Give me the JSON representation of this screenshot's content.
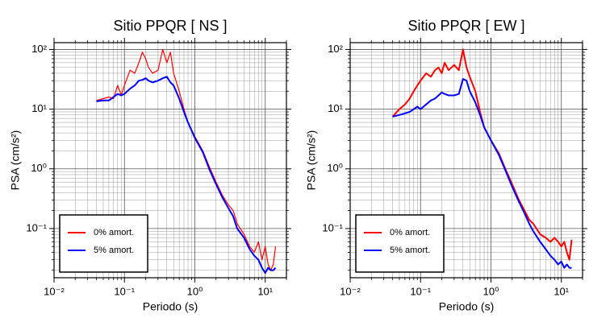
{
  "chart_data": [
    {
      "type": "line",
      "title": "Sitio PPQR [ NS ]",
      "x_label": "Periodo (s)",
      "y_label": "PSA (cm/s²)",
      "log_x": true,
      "log_y": true,
      "grid": true,
      "legend": "lower left",
      "xlim": [
        0.01,
        20
      ],
      "ylim": [
        0.015,
        130
      ],
      "xticks": [
        {
          "value": 0.01,
          "label": "10⁻²"
        },
        {
          "value": 0.1,
          "label": "10⁻¹"
        },
        {
          "value": 1,
          "label": "10⁰"
        },
        {
          "value": 10,
          "label": "10¹"
        }
      ],
      "yticks": [
        {
          "value": 0.1,
          "label": "10⁻¹"
        },
        {
          "value": 1,
          "label": "10⁰"
        },
        {
          "value": 10,
          "label": "10¹"
        },
        {
          "value": 100,
          "label": "10²"
        }
      ],
      "xminor": [
        0.02,
        0.03,
        0.04,
        0.05,
        0.06,
        0.07,
        0.08,
        0.09,
        0.2,
        0.3,
        0.4,
        0.5,
        0.6,
        0.7,
        0.8,
        0.9,
        2,
        3,
        4,
        5,
        6,
        7,
        8,
        9,
        20
      ],
      "yminor": [
        0.02,
        0.03,
        0.04,
        0.05,
        0.06,
        0.07,
        0.08,
        0.09,
        0.2,
        0.3,
        0.4,
        0.5,
        0.6,
        0.7,
        0.8,
        0.9,
        2,
        3,
        4,
        5,
        6,
        7,
        8,
        9,
        20,
        30,
        40,
        50,
        60,
        70,
        80,
        90
      ],
      "x": [
        0.04,
        0.05,
        0.06,
        0.07,
        0.08,
        0.09,
        0.1,
        0.12,
        0.14,
        0.16,
        0.18,
        0.2,
        0.22,
        0.25,
        0.3,
        0.35,
        0.4,
        0.45,
        0.5,
        0.6,
        0.7,
        0.8,
        1,
        1.3,
        1.6,
        2,
        2.5,
        3,
        3.5,
        4,
        5,
        6,
        7,
        8,
        9,
        10,
        11,
        12,
        13,
        14
      ],
      "series": [
        {
          "name": "0% amort.",
          "color": "#ff0000",
          "width": 1.2,
          "values": [
            14,
            15,
            16,
            15,
            25,
            17,
            25,
            45,
            40,
            60,
            90,
            70,
            50,
            40,
            45,
            100,
            60,
            90,
            40,
            20,
            10,
            6,
            3.5,
            2,
            1.1,
            0.6,
            0.35,
            0.25,
            0.2,
            0.12,
            0.08,
            0.05,
            0.04,
            0.06,
            0.03,
            0.05,
            0.025,
            0.02,
            0.025,
            0.05
          ]
        },
        {
          "name": "5% amort.",
          "color": "#0000ff",
          "width": 2,
          "values": [
            13.5,
            14,
            14,
            16,
            18,
            17,
            18,
            22,
            25,
            30,
            31,
            33,
            30,
            28,
            30,
            33,
            35,
            28,
            25,
            15,
            9,
            6,
            3.3,
            1.9,
            1.0,
            0.55,
            0.32,
            0.22,
            0.16,
            0.1,
            0.07,
            0.045,
            0.035,
            0.03,
            0.022,
            0.018,
            0.022,
            0.02,
            0.02,
            0.022
          ]
        }
      ]
    },
    {
      "type": "line",
      "title": "Sitio PPQR [ EW ]",
      "x_label": "Periodo (s)",
      "y_label": "PSA (cm/s²)",
      "log_x": true,
      "log_y": true,
      "grid": true,
      "legend": "lower left",
      "xlim": [
        0.01,
        20
      ],
      "ylim": [
        0.015,
        130
      ],
      "xticks": [
        {
          "value": 0.01,
          "label": "10⁻²"
        },
        {
          "value": 0.1,
          "label": "10⁻¹"
        },
        {
          "value": 1,
          "label": "10⁰"
        },
        {
          "value": 10,
          "label": "10¹"
        }
      ],
      "yticks": [
        {
          "value": 0.1,
          "label": "10⁻¹"
        },
        {
          "value": 1,
          "label": "10⁰"
        },
        {
          "value": 10,
          "label": "10¹"
        },
        {
          "value": 100,
          "label": "10²"
        }
      ],
      "xminor": [
        0.02,
        0.03,
        0.04,
        0.05,
        0.06,
        0.07,
        0.08,
        0.09,
        0.2,
        0.3,
        0.4,
        0.5,
        0.6,
        0.7,
        0.8,
        0.9,
        2,
        3,
        4,
        5,
        6,
        7,
        8,
        9,
        20
      ],
      "yminor": [
        0.02,
        0.03,
        0.04,
        0.05,
        0.06,
        0.07,
        0.08,
        0.09,
        0.2,
        0.3,
        0.4,
        0.5,
        0.6,
        0.7,
        0.8,
        0.9,
        2,
        3,
        4,
        5,
        6,
        7,
        8,
        9,
        20,
        30,
        40,
        50,
        60,
        70,
        80,
        90
      ],
      "x": [
        0.04,
        0.05,
        0.06,
        0.07,
        0.08,
        0.09,
        0.1,
        0.12,
        0.14,
        0.16,
        0.18,
        0.2,
        0.22,
        0.25,
        0.3,
        0.35,
        0.4,
        0.45,
        0.5,
        0.6,
        0.7,
        0.8,
        1,
        1.3,
        1.6,
        2,
        2.5,
        3,
        3.5,
        4,
        5,
        6,
        7,
        8,
        9,
        10,
        11,
        12,
        13,
        14
      ],
      "series": [
        {
          "name": "0% amort.",
          "color": "#ff0000",
          "width": 2,
          "values": [
            7.5,
            10,
            12,
            15,
            20,
            25,
            30,
            40,
            35,
            45,
            50,
            40,
            60,
            45,
            55,
            45,
            100,
            50,
            35,
            20,
            9,
            5,
            3,
            1.8,
            1,
            0.55,
            0.3,
            0.2,
            0.14,
            0.12,
            0.08,
            0.07,
            0.06,
            0.07,
            0.06,
            0.05,
            0.06,
            0.04,
            0.03,
            0.065
          ]
        },
        {
          "name": "5% amort.",
          "color": "#0000ff",
          "width": 2,
          "values": [
            7.5,
            8,
            8.5,
            9,
            10,
            11,
            10,
            12,
            14,
            15,
            17,
            19,
            18,
            17,
            17,
            18,
            32,
            30,
            20,
            13,
            8,
            5,
            3,
            1.7,
            0.95,
            0.5,
            0.28,
            0.18,
            0.12,
            0.09,
            0.06,
            0.045,
            0.035,
            0.03,
            0.025,
            0.028,
            0.022,
            0.025,
            0.022,
            0.022
          ]
        }
      ]
    }
  ]
}
